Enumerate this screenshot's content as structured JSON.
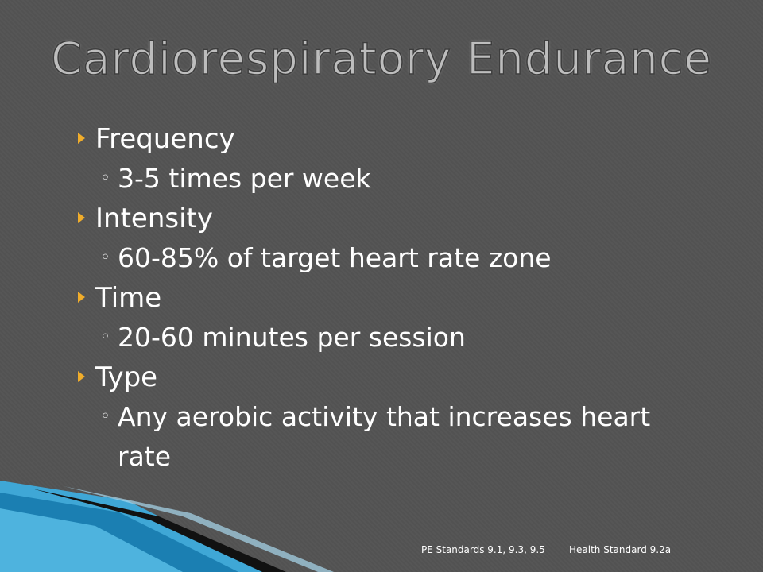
{
  "slide": {
    "title": "Cardiorespiratory Endurance",
    "bullets": [
      {
        "text": "Frequency",
        "sub": [
          "3-5 times per week"
        ]
      },
      {
        "text": "Intensity",
        "sub": [
          "60-85% of target heart rate zone"
        ]
      },
      {
        "text": "Time",
        "sub": [
          "20-60 minutes per session"
        ]
      },
      {
        "text": "Type",
        "sub": [
          "Any aerobic activity that increases heart rate"
        ]
      }
    ],
    "footer": [
      "PE Standards 9.1, 9.3, 9.5",
      "Health Standard 9.2a"
    ]
  }
}
